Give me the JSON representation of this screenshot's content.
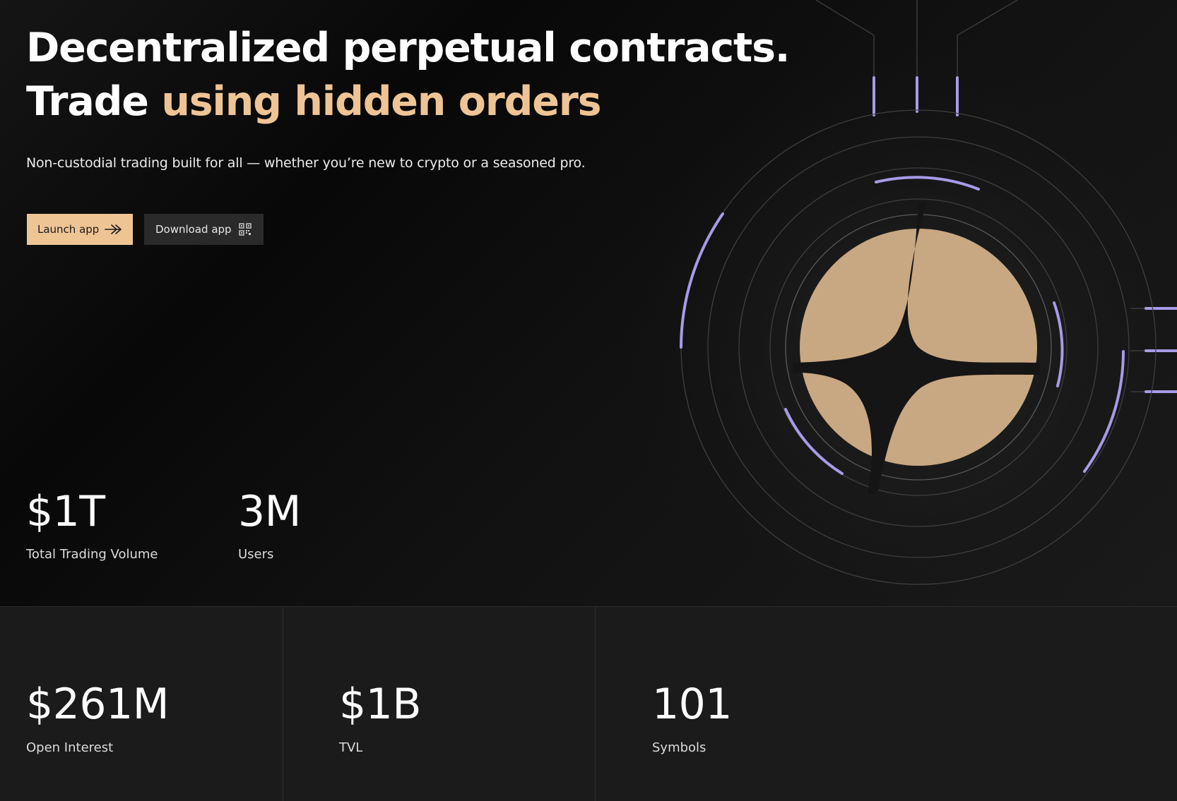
{
  "hero": {
    "headline_line1": "Decentralized perpetual contracts.",
    "headline_line2_prefix": "Trade ",
    "headline_line2_accent": "using hidden orders",
    "subtitle": "Non-custodial trading built for all — whether you’re new to crypto or a seasoned pro.",
    "launch_button": {
      "label": "Launch app",
      "icon": "arrow-right-icon"
    },
    "download_button": {
      "label": "Download app",
      "icon": "qr-code-icon"
    },
    "logo_icon": "four-point-star-coin-logo"
  },
  "hero_stats": [
    {
      "value": "$1T",
      "label": "Total Trading Volume"
    },
    {
      "value": "3M",
      "label": "Users"
    }
  ],
  "bottom_stats": [
    {
      "value": "$261M",
      "label": "Open Interest"
    },
    {
      "value": "$1B",
      "label": "TVL"
    },
    {
      "value": "101",
      "label": "Symbols"
    }
  ],
  "colors": {
    "accent": "#efc495",
    "logo_fill": "#c8a882",
    "ring_highlight": "#a79be8",
    "background": "#151515",
    "stats_background": "#1b1b1b"
  }
}
